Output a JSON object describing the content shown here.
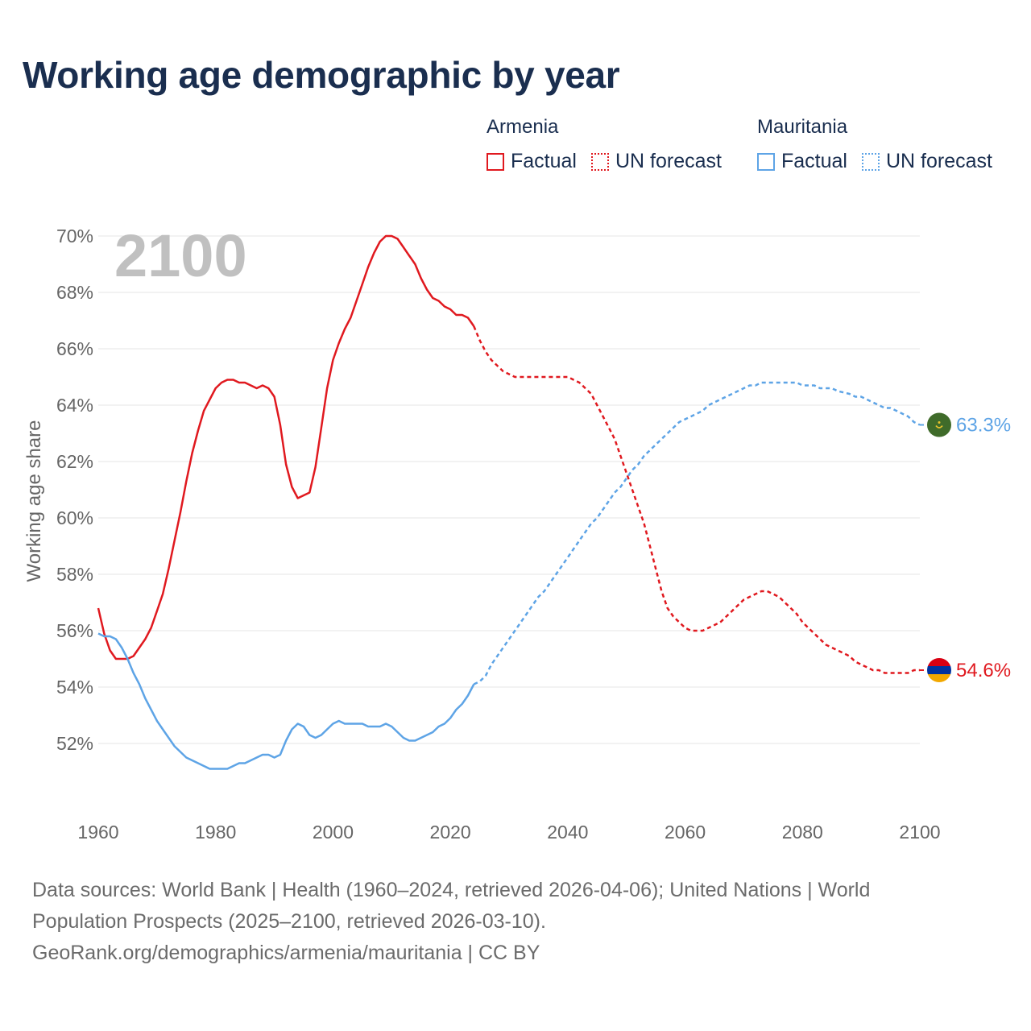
{
  "chart_data": {
    "type": "line",
    "title": "Working age demographic by year",
    "ylabel": "Working age share",
    "xlabel": "",
    "year_label": "2100",
    "xlim": [
      1960,
      2100
    ],
    "ylim": [
      50,
      70.6
    ],
    "x_ticks": [
      1960,
      1980,
      2000,
      2020,
      2040,
      2060,
      2080,
      2100
    ],
    "y_ticks": [
      52,
      54,
      56,
      58,
      60,
      62,
      64,
      66,
      68,
      70
    ],
    "y_tick_labels": [
      "52%",
      "54%",
      "56%",
      "58%",
      "60%",
      "62%",
      "64%",
      "66%",
      "68%",
      "70%"
    ],
    "legend": {
      "groups": [
        {
          "name": "Armenia",
          "color": "#e0191f",
          "factual_label": "Factual",
          "forecast_label": "UN forecast"
        },
        {
          "name": "Mauritania",
          "color": "#5ea4e6",
          "factual_label": "Factual",
          "forecast_label": "UN forecast"
        }
      ]
    },
    "series": [
      {
        "name": "Armenia",
        "color": "#e0191f",
        "end_label": "54.6%",
        "factual": [
          [
            1960,
            56.8
          ],
          [
            1961,
            55.9
          ],
          [
            1962,
            55.3
          ],
          [
            1963,
            55.0
          ],
          [
            1964,
            55.0
          ],
          [
            1965,
            55.0
          ],
          [
            1966,
            55.1
          ],
          [
            1967,
            55.4
          ],
          [
            1968,
            55.7
          ],
          [
            1969,
            56.1
          ],
          [
            1970,
            56.7
          ],
          [
            1971,
            57.3
          ],
          [
            1972,
            58.2
          ],
          [
            1973,
            59.2
          ],
          [
            1974,
            60.2
          ],
          [
            1975,
            61.3
          ],
          [
            1976,
            62.3
          ],
          [
            1977,
            63.1
          ],
          [
            1978,
            63.8
          ],
          [
            1979,
            64.2
          ],
          [
            1980,
            64.6
          ],
          [
            1981,
            64.8
          ],
          [
            1982,
            64.9
          ],
          [
            1983,
            64.9
          ],
          [
            1984,
            64.8
          ],
          [
            1985,
            64.8
          ],
          [
            1986,
            64.7
          ],
          [
            1987,
            64.6
          ],
          [
            1988,
            64.7
          ],
          [
            1989,
            64.6
          ],
          [
            1990,
            64.3
          ],
          [
            1991,
            63.3
          ],
          [
            1992,
            61.9
          ],
          [
            1993,
            61.1
          ],
          [
            1994,
            60.7
          ],
          [
            1995,
            60.8
          ],
          [
            1996,
            60.9
          ],
          [
            1997,
            61.8
          ],
          [
            1998,
            63.2
          ],
          [
            1999,
            64.6
          ],
          [
            2000,
            65.6
          ],
          [
            2001,
            66.2
          ],
          [
            2002,
            66.7
          ],
          [
            2003,
            67.1
          ],
          [
            2004,
            67.7
          ],
          [
            2005,
            68.3
          ],
          [
            2006,
            68.9
          ],
          [
            2007,
            69.4
          ],
          [
            2008,
            69.8
          ],
          [
            2009,
            70.0
          ],
          [
            2010,
            70.0
          ],
          [
            2011,
            69.9
          ],
          [
            2012,
            69.6
          ],
          [
            2013,
            69.3
          ],
          [
            2014,
            69.0
          ],
          [
            2015,
            68.5
          ],
          [
            2016,
            68.1
          ],
          [
            2017,
            67.8
          ],
          [
            2018,
            67.7
          ],
          [
            2019,
            67.5
          ],
          [
            2020,
            67.4
          ],
          [
            2021,
            67.2
          ],
          [
            2022,
            67.2
          ],
          [
            2023,
            67.1
          ],
          [
            2024,
            66.8
          ]
        ],
        "forecast": [
          [
            2024,
            66.8
          ],
          [
            2025,
            66.3
          ],
          [
            2026,
            65.9
          ],
          [
            2027,
            65.6
          ],
          [
            2028,
            65.4
          ],
          [
            2029,
            65.2
          ],
          [
            2030,
            65.1
          ],
          [
            2031,
            65.0
          ],
          [
            2032,
            65.0
          ],
          [
            2035,
            65.0
          ],
          [
            2038,
            65.0
          ],
          [
            2040,
            65.0
          ],
          [
            2041,
            64.9
          ],
          [
            2042,
            64.8
          ],
          [
            2043,
            64.6
          ],
          [
            2044,
            64.4
          ],
          [
            2045,
            64.0
          ],
          [
            2046,
            63.6
          ],
          [
            2047,
            63.2
          ],
          [
            2048,
            62.8
          ],
          [
            2049,
            62.2
          ],
          [
            2050,
            61.6
          ],
          [
            2051,
            61.0
          ],
          [
            2052,
            60.4
          ],
          [
            2053,
            59.8
          ],
          [
            2054,
            59.0
          ],
          [
            2055,
            58.2
          ],
          [
            2056,
            57.4
          ],
          [
            2057,
            56.8
          ],
          [
            2058,
            56.5
          ],
          [
            2059,
            56.3
          ],
          [
            2060,
            56.1
          ],
          [
            2061,
            56.0
          ],
          [
            2062,
            56.0
          ],
          [
            2063,
            56.0
          ],
          [
            2064,
            56.1
          ],
          [
            2065,
            56.2
          ],
          [
            2066,
            56.3
          ],
          [
            2067,
            56.5
          ],
          [
            2068,
            56.7
          ],
          [
            2069,
            56.9
          ],
          [
            2070,
            57.1
          ],
          [
            2071,
            57.2
          ],
          [
            2072,
            57.3
          ],
          [
            2073,
            57.4
          ],
          [
            2074,
            57.4
          ],
          [
            2075,
            57.3
          ],
          [
            2076,
            57.2
          ],
          [
            2077,
            57.0
          ],
          [
            2078,
            56.8
          ],
          [
            2079,
            56.6
          ],
          [
            2080,
            56.3
          ],
          [
            2081,
            56.1
          ],
          [
            2082,
            55.9
          ],
          [
            2083,
            55.7
          ],
          [
            2084,
            55.5
          ],
          [
            2085,
            55.4
          ],
          [
            2086,
            55.3
          ],
          [
            2087,
            55.2
          ],
          [
            2088,
            55.1
          ],
          [
            2089,
            54.9
          ],
          [
            2090,
            54.8
          ],
          [
            2091,
            54.7
          ],
          [
            2092,
            54.6
          ],
          [
            2093,
            54.6
          ],
          [
            2094,
            54.5
          ],
          [
            2095,
            54.5
          ],
          [
            2096,
            54.5
          ],
          [
            2097,
            54.5
          ],
          [
            2098,
            54.5
          ],
          [
            2099,
            54.6
          ],
          [
            2100,
            54.6
          ]
        ]
      },
      {
        "name": "Mauritania",
        "color": "#5ea4e6",
        "end_label": "63.3%",
        "factual": [
          [
            1960,
            55.9
          ],
          [
            1961,
            55.8
          ],
          [
            1962,
            55.8
          ],
          [
            1963,
            55.7
          ],
          [
            1964,
            55.4
          ],
          [
            1965,
            55.0
          ],
          [
            1966,
            54.5
          ],
          [
            1967,
            54.1
          ],
          [
            1968,
            53.6
          ],
          [
            1969,
            53.2
          ],
          [
            1970,
            52.8
          ],
          [
            1971,
            52.5
          ],
          [
            1972,
            52.2
          ],
          [
            1973,
            51.9
          ],
          [
            1974,
            51.7
          ],
          [
            1975,
            51.5
          ],
          [
            1976,
            51.4
          ],
          [
            1977,
            51.3
          ],
          [
            1978,
            51.2
          ],
          [
            1979,
            51.1
          ],
          [
            1980,
            51.1
          ],
          [
            1981,
            51.1
          ],
          [
            1982,
            51.1
          ],
          [
            1983,
            51.2
          ],
          [
            1984,
            51.3
          ],
          [
            1985,
            51.3
          ],
          [
            1986,
            51.4
          ],
          [
            1987,
            51.5
          ],
          [
            1988,
            51.6
          ],
          [
            1989,
            51.6
          ],
          [
            1990,
            51.5
          ],
          [
            1991,
            51.6
          ],
          [
            1992,
            52.1
          ],
          [
            1993,
            52.5
          ],
          [
            1994,
            52.7
          ],
          [
            1995,
            52.6
          ],
          [
            1996,
            52.3
          ],
          [
            1997,
            52.2
          ],
          [
            1998,
            52.3
          ],
          [
            1999,
            52.5
          ],
          [
            2000,
            52.7
          ],
          [
            2001,
            52.8
          ],
          [
            2002,
            52.7
          ],
          [
            2003,
            52.7
          ],
          [
            2004,
            52.7
          ],
          [
            2005,
            52.7
          ],
          [
            2006,
            52.6
          ],
          [
            2007,
            52.6
          ],
          [
            2008,
            52.6
          ],
          [
            2009,
            52.7
          ],
          [
            2010,
            52.6
          ],
          [
            2011,
            52.4
          ],
          [
            2012,
            52.2
          ],
          [
            2013,
            52.1
          ],
          [
            2014,
            52.1
          ],
          [
            2015,
            52.2
          ],
          [
            2016,
            52.3
          ],
          [
            2017,
            52.4
          ],
          [
            2018,
            52.6
          ],
          [
            2019,
            52.7
          ],
          [
            2020,
            52.9
          ],
          [
            2021,
            53.2
          ],
          [
            2022,
            53.4
          ],
          [
            2023,
            53.7
          ],
          [
            2024,
            54.1
          ]
        ],
        "forecast": [
          [
            2024,
            54.1
          ],
          [
            2025,
            54.2
          ],
          [
            2026,
            54.4
          ],
          [
            2027,
            54.8
          ],
          [
            2028,
            55.1
          ],
          [
            2029,
            55.4
          ],
          [
            2030,
            55.7
          ],
          [
            2031,
            56.0
          ],
          [
            2032,
            56.3
          ],
          [
            2033,
            56.6
          ],
          [
            2034,
            56.9
          ],
          [
            2035,
            57.2
          ],
          [
            2036,
            57.4
          ],
          [
            2037,
            57.7
          ],
          [
            2038,
            58.0
          ],
          [
            2039,
            58.3
          ],
          [
            2040,
            58.6
          ],
          [
            2041,
            58.9
          ],
          [
            2042,
            59.2
          ],
          [
            2043,
            59.5
          ],
          [
            2044,
            59.8
          ],
          [
            2045,
            60.0
          ],
          [
            2046,
            60.3
          ],
          [
            2047,
            60.6
          ],
          [
            2048,
            60.9
          ],
          [
            2049,
            61.1
          ],
          [
            2050,
            61.4
          ],
          [
            2051,
            61.7
          ],
          [
            2052,
            61.9
          ],
          [
            2053,
            62.2
          ],
          [
            2054,
            62.4
          ],
          [
            2055,
            62.6
          ],
          [
            2056,
            62.8
          ],
          [
            2057,
            63.0
          ],
          [
            2058,
            63.2
          ],
          [
            2059,
            63.4
          ],
          [
            2060,
            63.5
          ],
          [
            2061,
            63.6
          ],
          [
            2062,
            63.7
          ],
          [
            2063,
            63.8
          ],
          [
            2064,
            64.0
          ],
          [
            2065,
            64.1
          ],
          [
            2066,
            64.2
          ],
          [
            2067,
            64.3
          ],
          [
            2068,
            64.4
          ],
          [
            2069,
            64.5
          ],
          [
            2070,
            64.6
          ],
          [
            2071,
            64.7
          ],
          [
            2072,
            64.7
          ],
          [
            2073,
            64.8
          ],
          [
            2074,
            64.8
          ],
          [
            2076,
            64.8
          ],
          [
            2078,
            64.8
          ],
          [
            2079,
            64.8
          ],
          [
            2080,
            64.7
          ],
          [
            2082,
            64.7
          ],
          [
            2083,
            64.6
          ],
          [
            2085,
            64.6
          ],
          [
            2086,
            64.5
          ],
          [
            2088,
            64.4
          ],
          [
            2089,
            64.3
          ],
          [
            2090,
            64.3
          ],
          [
            2091,
            64.2
          ],
          [
            2092,
            64.1
          ],
          [
            2093,
            64.0
          ],
          [
            2094,
            63.9
          ],
          [
            2095,
            63.9
          ],
          [
            2096,
            63.8
          ],
          [
            2097,
            63.7
          ],
          [
            2098,
            63.6
          ],
          [
            2099,
            63.4
          ],
          [
            2100,
            63.3
          ]
        ]
      }
    ],
    "end_markers": [
      {
        "series": "Mauritania",
        "icon": "mauritania-flag-icon",
        "colors": [
          "#3f6b2a",
          "#e8c12c",
          "#c8102e"
        ]
      },
      {
        "series": "Armenia",
        "icon": "armenia-flag-icon",
        "colors": [
          "#d90012",
          "#0033a0",
          "#f2a800"
        ]
      }
    ],
    "grid": true
  },
  "footer": {
    "line1": "Data sources: World Bank | Health (1960–2024, retrieved 2026-04-06); United Nations | World",
    "line2": "Population Prospects (2025–2100, retrieved 2026-03-10).",
    "line3": "GeoRank.org/demographics/armenia/mauritania | CC BY"
  }
}
